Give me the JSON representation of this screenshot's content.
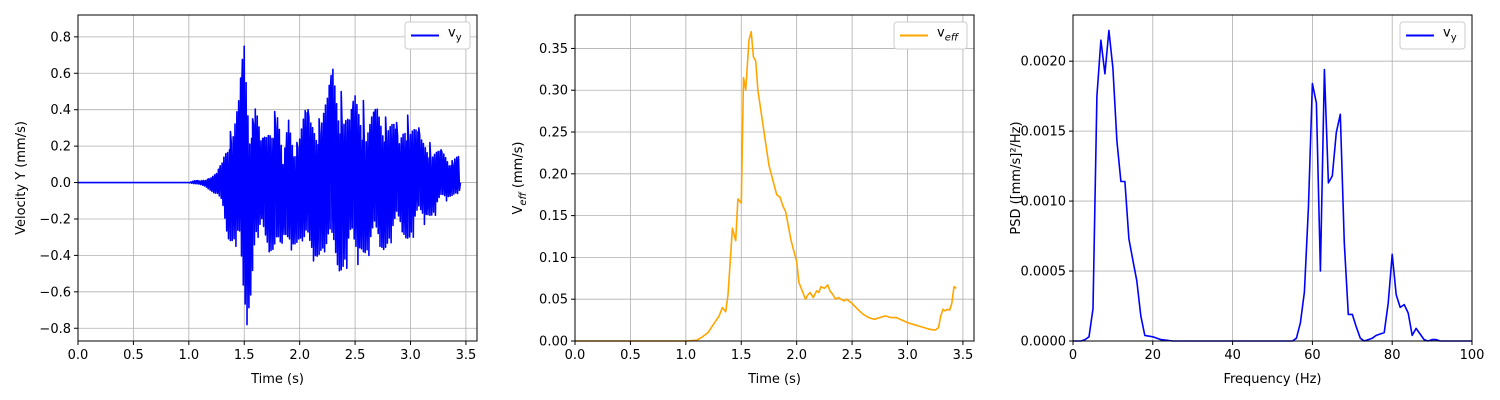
{
  "chart_data": [
    {
      "type": "line",
      "title": "",
      "xlabel": "Time (s)",
      "ylabel": "Velocity Y (mm/s)",
      "xlim": [
        0,
        3.6
      ],
      "ylim": [
        -0.87,
        0.92
      ],
      "xticks": [
        0,
        0.5,
        1,
        1.5,
        2,
        2.5,
        3,
        3.5
      ],
      "xtick_labels": [
        "0.0",
        "0.5",
        "1.0",
        "1.5",
        "2.0",
        "2.5",
        "3.0",
        "3.5"
      ],
      "yticks": [
        -0.8,
        -0.6,
        -0.4,
        -0.2,
        0,
        0.2,
        0.4,
        0.6,
        0.8
      ],
      "ytick_labels": [
        "−0.8",
        "−0.6",
        "−0.4",
        "−0.2",
        "0.0",
        "0.2",
        "0.4",
        "0.6",
        "0.8"
      ],
      "grid": true,
      "legend_position": "top-right",
      "series": [
        {
          "name": "v_y",
          "label_main": "v",
          "label_sub": "y",
          "color": "#0000ff",
          "envelope": {
            "t": [
              0,
              1.0,
              1.05,
              1.1,
              1.15,
              1.2,
              1.25,
              1.3,
              1.35,
              1.4,
              1.45,
              1.5,
              1.55,
              1.6,
              1.65,
              1.7,
              1.75,
              1.8,
              1.85,
              1.9,
              1.95,
              2.0,
              2.05,
              2.1,
              2.15,
              2.2,
              2.25,
              2.3,
              2.35,
              2.4,
              2.45,
              2.5,
              2.55,
              2.6,
              2.65,
              2.7,
              2.75,
              2.8,
              2.85,
              2.9,
              2.95,
              3.0,
              3.05,
              3.1,
              3.15,
              3.2,
              3.25,
              3.3,
              3.35,
              3.4,
              3.45
            ],
            "max": [
              0,
              0,
              0.01,
              0.01,
              0.02,
              0.03,
              0.05,
              0.12,
              0.28,
              0.3,
              0.45,
              0.83,
              0.35,
              0.49,
              0.23,
              0.27,
              0.39,
              0.44,
              0.1,
              0.37,
              0.22,
              0.3,
              0.4,
              0.35,
              0.35,
              0.42,
              0.47,
              0.66,
              0.5,
              0.42,
              0.35,
              0.5,
              0.45,
              0.3,
              0.37,
              0.42,
              0.36,
              0.39,
              0.33,
              0.22,
              0.37,
              0.37,
              0.3,
              0.24,
              0.22,
              0.2,
              0.18,
              0.16,
              0.12,
              0.19,
              0.15
            ],
            "min": [
              0,
              0,
              -0.01,
              -0.01,
              -0.02,
              -0.05,
              -0.1,
              -0.11,
              -0.3,
              -0.35,
              -0.41,
              -0.78,
              -0.68,
              -0.3,
              -0.35,
              -0.38,
              -0.38,
              -0.3,
              -0.52,
              -0.37,
              -0.34,
              -0.32,
              -0.44,
              -0.43,
              -0.41,
              -0.38,
              -0.48,
              -0.36,
              -0.49,
              -0.47,
              -0.4,
              -0.45,
              -0.36,
              -0.4,
              -0.39,
              -0.35,
              -0.38,
              -0.33,
              -0.3,
              -0.27,
              -0.31,
              -0.3,
              -0.22,
              -0.23,
              -0.18,
              -0.18,
              -0.12,
              -0.1,
              -0.08,
              -0.06,
              -0.05
            ]
          }
        }
      ]
    },
    {
      "type": "line",
      "title": "",
      "xlabel": "Time (s)",
      "ylabel_main": "V",
      "ylabel_sub": "eff",
      "ylabel_rest": " (mm/s)",
      "xlim": [
        0,
        3.6
      ],
      "ylim": [
        0,
        0.39
      ],
      "xticks": [
        0,
        0.5,
        1,
        1.5,
        2,
        2.5,
        3,
        3.5
      ],
      "xtick_labels": [
        "0.0",
        "0.5",
        "1.0",
        "1.5",
        "2.0",
        "2.5",
        "3.0",
        "3.5"
      ],
      "yticks": [
        0,
        0.05,
        0.1,
        0.15,
        0.2,
        0.25,
        0.3,
        0.35
      ],
      "ytick_labels": [
        "0.00",
        "0.05",
        "0.10",
        "0.15",
        "0.20",
        "0.25",
        "0.30",
        "0.35"
      ],
      "grid": true,
      "legend_position": "top-right",
      "series": [
        {
          "name": "v_eff",
          "label_main": "v",
          "label_sub": "eff",
          "color": "#ffa500",
          "x": [
            0,
            1.0,
            1.1,
            1.15,
            1.2,
            1.25,
            1.3,
            1.33,
            1.36,
            1.38,
            1.4,
            1.42,
            1.45,
            1.47,
            1.5,
            1.52,
            1.54,
            1.55,
            1.57,
            1.59,
            1.61,
            1.63,
            1.65,
            1.7,
            1.75,
            1.8,
            1.82,
            1.85,
            1.88,
            1.9,
            1.95,
            2.0,
            2.02,
            2.05,
            2.08,
            2.1,
            2.12,
            2.15,
            2.18,
            2.2,
            2.22,
            2.25,
            2.28,
            2.3,
            2.33,
            2.35,
            2.38,
            2.4,
            2.43,
            2.45,
            2.5,
            2.55,
            2.6,
            2.65,
            2.7,
            2.75,
            2.8,
            2.85,
            2.9,
            2.95,
            3.0,
            3.05,
            3.1,
            3.15,
            3.2,
            3.25,
            3.28,
            3.3,
            3.32,
            3.34,
            3.36,
            3.38,
            3.4,
            3.42,
            3.44
          ],
          "y": [
            0,
            0,
            0.001,
            0.005,
            0.01,
            0.02,
            0.03,
            0.04,
            0.035,
            0.055,
            0.095,
            0.135,
            0.12,
            0.17,
            0.165,
            0.315,
            0.3,
            0.32,
            0.36,
            0.37,
            0.34,
            0.335,
            0.3,
            0.255,
            0.21,
            0.185,
            0.175,
            0.172,
            0.16,
            0.155,
            0.12,
            0.095,
            0.07,
            0.06,
            0.05,
            0.055,
            0.058,
            0.052,
            0.06,
            0.058,
            0.065,
            0.063,
            0.067,
            0.06,
            0.055,
            0.05,
            0.052,
            0.05,
            0.048,
            0.05,
            0.045,
            0.038,
            0.032,
            0.028,
            0.026,
            0.028,
            0.03,
            0.028,
            0.028,
            0.025,
            0.022,
            0.02,
            0.018,
            0.016,
            0.014,
            0.013,
            0.016,
            0.03,
            0.038,
            0.036,
            0.038,
            0.037,
            0.045,
            0.065,
            0.063
          ]
        }
      ]
    },
    {
      "type": "line",
      "title": "",
      "xlabel": "Frequency (Hz)",
      "ylabel": "PSD ([mm/s]²/Hz)",
      "xlim": [
        0,
        100
      ],
      "ylim": [
        0,
        0.00233
      ],
      "xticks": [
        0,
        20,
        40,
        60,
        80,
        100
      ],
      "xtick_labels": [
        "0",
        "20",
        "40",
        "60",
        "80",
        "100"
      ],
      "yticks": [
        0,
        0.0005,
        0.001,
        0.0015,
        0.002
      ],
      "ytick_labels": [
        "0.0000",
        "0.0005",
        "0.0010",
        "0.0015",
        "0.0020"
      ],
      "grid": true,
      "legend_position": "top-right",
      "series": [
        {
          "name": "v_y",
          "label_main": "v",
          "label_sub": "y",
          "color": "#0000ff",
          "x": [
            0,
            1,
            2,
            3,
            4,
            5,
            6,
            7,
            8,
            9,
            10,
            11,
            12,
            13,
            14,
            15,
            16,
            17,
            18,
            20,
            22,
            25,
            30,
            40,
            50,
            55,
            56,
            57,
            58,
            59,
            60,
            61,
            62,
            63,
            64,
            65,
            66,
            67,
            68,
            69,
            70,
            71,
            72,
            73,
            74,
            75,
            76,
            77,
            78,
            79,
            80,
            81,
            82,
            83,
            84,
            85,
            86,
            87,
            88,
            89,
            90,
            91,
            92,
            95,
            100
          ],
          "y": [
            0,
            0,
            0,
            1e-05,
            3e-05,
            0.00023,
            0.00175,
            0.00215,
            0.00191,
            0.00222,
            0.00195,
            0.00143,
            0.00114,
            0.00114,
            0.00073,
            0.00058,
            0.00043,
            0.00018,
            4e-05,
            3e-05,
            1e-05,
            0,
            0,
            0,
            0,
            0,
            2e-05,
            0.00013,
            0.00035,
            0.00095,
            0.00184,
            0.0017,
            0.0005,
            0.00194,
            0.00113,
            0.00118,
            0.00149,
            0.00162,
            0.0007,
            0.00019,
            0.00019,
            0.0001,
            2e-05,
            0,
            1e-05,
            2e-05,
            4e-05,
            5e-05,
            6e-05,
            0.00027,
            0.00062,
            0.00033,
            0.00024,
            0.00026,
            0.0002,
            4e-05,
            9e-05,
            5e-05,
            1e-05,
            0,
            1e-05,
            1e-05,
            0,
            0,
            0
          ]
        }
      ]
    }
  ]
}
